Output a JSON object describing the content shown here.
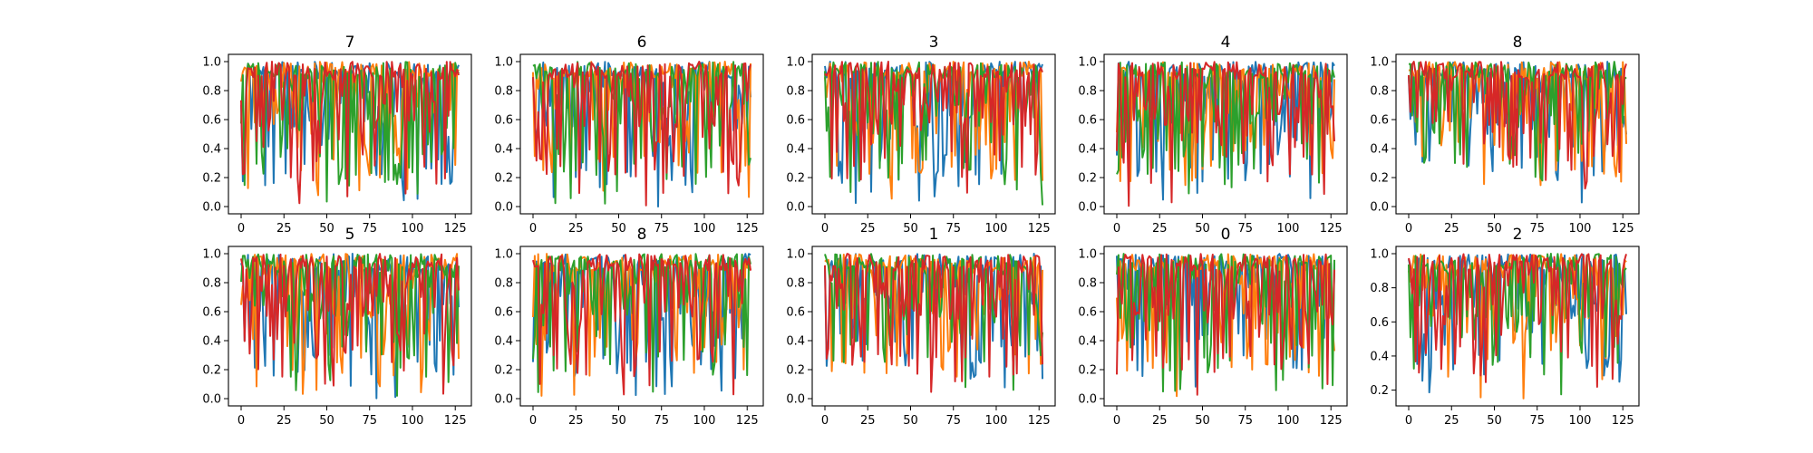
{
  "colors": {
    "series": [
      "#1f77b4",
      "#ff7f0e",
      "#2ca02c",
      "#d62728"
    ],
    "axes": "#000000",
    "background": "#ffffff"
  },
  "chart_data": [
    {
      "type": "line",
      "title": "7",
      "xlim": [
        0,
        127
      ],
      "ylim": [
        0,
        1
      ],
      "xticks": [
        0,
        25,
        50,
        75,
        100,
        125
      ],
      "yticks": [
        0.0,
        0.2,
        0.4,
        0.6,
        0.8,
        1.0
      ],
      "ytick_labels": [
        "0.0",
        "0.2",
        "0.4",
        "0.6",
        "0.8",
        "1.0"
      ],
      "n_points": 128,
      "series_ranges": [
        [
          0.0,
          1.0
        ],
        [
          0.0,
          1.0
        ],
        [
          0.0,
          1.0
        ],
        [
          0.0,
          1.0
        ]
      ]
    },
    {
      "type": "line",
      "title": "6",
      "xlim": [
        0,
        127
      ],
      "ylim": [
        0,
        1
      ],
      "xticks": [
        0,
        25,
        50,
        75,
        100,
        125
      ],
      "yticks": [
        0.0,
        0.2,
        0.4,
        0.6,
        0.8,
        1.0
      ],
      "ytick_labels": [
        "0.0",
        "0.2",
        "0.4",
        "0.6",
        "0.8",
        "1.0"
      ],
      "n_points": 128,
      "series_ranges": [
        [
          0.0,
          1.0
        ],
        [
          0.0,
          1.0
        ],
        [
          0.0,
          1.0
        ],
        [
          0.0,
          1.0
        ]
      ]
    },
    {
      "type": "line",
      "title": "3",
      "xlim": [
        0,
        127
      ],
      "ylim": [
        0,
        1
      ],
      "xticks": [
        0,
        25,
        50,
        75,
        100,
        125
      ],
      "yticks": [
        0.0,
        0.2,
        0.4,
        0.6,
        0.8,
        1.0
      ],
      "ytick_labels": [
        "0.0",
        "0.2",
        "0.4",
        "0.6",
        "0.8",
        "1.0"
      ],
      "n_points": 128,
      "series_ranges": [
        [
          0.0,
          1.0
        ],
        [
          0.0,
          1.0
        ],
        [
          0.0,
          1.0
        ],
        [
          0.0,
          1.0
        ]
      ]
    },
    {
      "type": "line",
      "title": "4",
      "xlim": [
        0,
        127
      ],
      "ylim": [
        0,
        1
      ],
      "xticks": [
        0,
        25,
        50,
        75,
        100,
        125
      ],
      "yticks": [
        0.0,
        0.2,
        0.4,
        0.6,
        0.8,
        1.0
      ],
      "ytick_labels": [
        "0.0",
        "0.2",
        "0.4",
        "0.6",
        "0.8",
        "1.0"
      ],
      "n_points": 128,
      "series_ranges": [
        [
          0.0,
          1.0
        ],
        [
          0.0,
          1.0
        ],
        [
          0.0,
          1.0
        ],
        [
          0.0,
          1.0
        ]
      ]
    },
    {
      "type": "line",
      "title": "8",
      "xlim": [
        0,
        127
      ],
      "ylim": [
        0,
        1
      ],
      "xticks": [
        0,
        25,
        50,
        75,
        100,
        125
      ],
      "yticks": [
        0.0,
        0.2,
        0.4,
        0.6,
        0.8,
        1.0
      ],
      "ytick_labels": [
        "0.0",
        "0.2",
        "0.4",
        "0.6",
        "0.8",
        "1.0"
      ],
      "n_points": 128,
      "series_ranges": [
        [
          0.0,
          1.0
        ],
        [
          0.0,
          1.0
        ],
        [
          0.0,
          1.0
        ],
        [
          0.0,
          1.0
        ]
      ]
    },
    {
      "type": "line",
      "title": "5",
      "xlim": [
        0,
        127
      ],
      "ylim": [
        0,
        1
      ],
      "xticks": [
        0,
        25,
        50,
        75,
        100,
        125
      ],
      "yticks": [
        0.0,
        0.2,
        0.4,
        0.6,
        0.8,
        1.0
      ],
      "ytick_labels": [
        "0.0",
        "0.2",
        "0.4",
        "0.6",
        "0.8",
        "1.0"
      ],
      "n_points": 128,
      "series_ranges": [
        [
          0.0,
          1.0
        ],
        [
          0.0,
          1.0
        ],
        [
          0.0,
          1.0
        ],
        [
          0.0,
          1.0
        ]
      ]
    },
    {
      "type": "line",
      "title": "8",
      "xlim": [
        0,
        127
      ],
      "ylim": [
        0,
        1
      ],
      "xticks": [
        0,
        25,
        50,
        75,
        100,
        125
      ],
      "yticks": [
        0.0,
        0.2,
        0.4,
        0.6,
        0.8,
        1.0
      ],
      "ytick_labels": [
        "0.0",
        "0.2",
        "0.4",
        "0.6",
        "0.8",
        "1.0"
      ],
      "n_points": 128,
      "series_ranges": [
        [
          0.0,
          1.0
        ],
        [
          0.0,
          1.0
        ],
        [
          0.0,
          1.0
        ],
        [
          0.0,
          1.0
        ]
      ]
    },
    {
      "type": "line",
      "title": "1",
      "xlim": [
        0,
        127
      ],
      "ylim": [
        0,
        1
      ],
      "xticks": [
        0,
        25,
        50,
        75,
        100,
        125
      ],
      "yticks": [
        0.0,
        0.2,
        0.4,
        0.6,
        0.8,
        1.0
      ],
      "ytick_labels": [
        "0.0",
        "0.2",
        "0.4",
        "0.6",
        "0.8",
        "1.0"
      ],
      "n_points": 128,
      "series_ranges": [
        [
          0.0,
          1.0
        ],
        [
          0.0,
          1.0
        ],
        [
          0.0,
          1.0
        ],
        [
          0.0,
          1.0
        ]
      ]
    },
    {
      "type": "line",
      "title": "0",
      "xlim": [
        0,
        127
      ],
      "ylim": [
        0,
        1
      ],
      "xticks": [
        0,
        25,
        50,
        75,
        100,
        125
      ],
      "yticks": [
        0.0,
        0.2,
        0.4,
        0.6,
        0.8,
        1.0
      ],
      "ytick_labels": [
        "0.0",
        "0.2",
        "0.4",
        "0.6",
        "0.8",
        "1.0"
      ],
      "n_points": 128,
      "series_ranges": [
        [
          0.0,
          1.0
        ],
        [
          0.0,
          1.0
        ],
        [
          0.0,
          1.0
        ],
        [
          0.0,
          1.0
        ]
      ]
    },
    {
      "type": "line",
      "title": "2",
      "xlim": [
        0,
        127
      ],
      "ylim": [
        0.15,
        1
      ],
      "xticks": [
        0,
        25,
        50,
        75,
        100,
        125
      ],
      "yticks": [
        0.2,
        0.4,
        0.6,
        0.8,
        1.0
      ],
      "ytick_labels": [
        "0.2",
        "0.4",
        "0.6",
        "0.8",
        "1.0"
      ],
      "n_points": 128,
      "series_ranges": [
        [
          0.15,
          1.0
        ],
        [
          0.15,
          1.0
        ],
        [
          0.15,
          1.0
        ],
        [
          0.15,
          1.0
        ]
      ]
    }
  ]
}
